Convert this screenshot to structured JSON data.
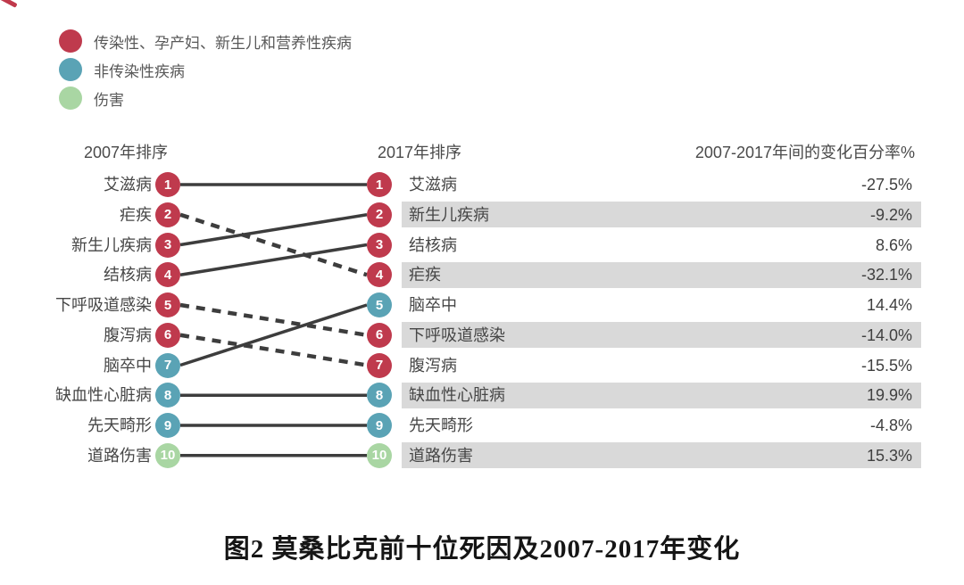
{
  "colors": {
    "communicable": "#bf3a4d",
    "noncommunicable": "#5aa3b5",
    "injury": "#a9d6a3",
    "line": "#3d3d3d",
    "shade": "#d9d9d9",
    "corner": "#c0394b"
  },
  "chart_data": {
    "type": "slope",
    "title": "图2 莫桑比克前十位死因及2007-2017年变化",
    "column_headers": {
      "left": "2007年排序",
      "right": "2017年排序",
      "change": "2007-2017年间的变化百分率%"
    },
    "legend": [
      {
        "key": "communicable",
        "label": "传染性、孕产妇、新生儿和营养性疾病"
      },
      {
        "key": "noncommunicable",
        "label": "非传染性疾病"
      },
      {
        "key": "injury",
        "label": "伤害"
      }
    ],
    "line_style_note": "solid = rank same or improved, dashed = rank dropped",
    "series": [
      {
        "name": "艾滋病",
        "category": "communicable",
        "rank_2007": 1,
        "rank_2017": 1,
        "change": "-27.5%",
        "change_pct": -27.5
      },
      {
        "name": "疟疾",
        "category": "communicable",
        "rank_2007": 2,
        "rank_2017": 4,
        "change": "-32.1%",
        "change_pct": -32.1
      },
      {
        "name": "新生儿疾病",
        "category": "communicable",
        "rank_2007": 3,
        "rank_2017": 2,
        "change": "-9.2%",
        "change_pct": -9.2
      },
      {
        "name": "结核病",
        "category": "communicable",
        "rank_2007": 4,
        "rank_2017": 3,
        "change": "8.6%",
        "change_pct": 8.6
      },
      {
        "name": "下呼吸道感染",
        "category": "communicable",
        "rank_2007": 5,
        "rank_2017": 6,
        "change": "-14.0%",
        "change_pct": -14.0
      },
      {
        "name": "腹泻病",
        "category": "communicable",
        "rank_2007": 6,
        "rank_2017": 7,
        "change": "-15.5%",
        "change_pct": -15.5
      },
      {
        "name": "脑卒中",
        "category": "noncommunicable",
        "rank_2007": 7,
        "rank_2017": 5,
        "change": "14.4%",
        "change_pct": 14.4
      },
      {
        "name": "缺血性心脏病",
        "category": "noncommunicable",
        "rank_2007": 8,
        "rank_2017": 8,
        "change": "19.9%",
        "change_pct": 19.9
      },
      {
        "name": "先天畸形",
        "category": "noncommunicable",
        "rank_2007": 9,
        "rank_2017": 9,
        "change": "-4.8%",
        "change_pct": -4.8
      },
      {
        "name": "道路伤害",
        "category": "injury",
        "rank_2007": 10,
        "rank_2017": 10,
        "change": "15.3%",
        "change_pct": 15.3
      }
    ]
  }
}
